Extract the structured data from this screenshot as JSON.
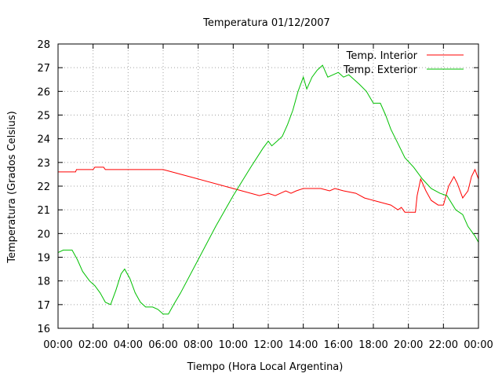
{
  "chart_data": {
    "type": "line",
    "title": "Temperatura 01/12/2007",
    "xlabel": "Tiempo (Hora Local Argentina)",
    "ylabel": "Temperatura (Grados Celsius)",
    "x_unit": "hour",
    "xlim": [
      0,
      24
    ],
    "ylim": [
      16,
      28
    ],
    "x_ticks": [
      0,
      2,
      4,
      6,
      8,
      10,
      12,
      14,
      16,
      18,
      20,
      22,
      24
    ],
    "x_tick_labels": [
      "00:00",
      "02:00",
      "04:00",
      "06:00",
      "08:00",
      "10:00",
      "12:00",
      "14:00",
      "16:00",
      "18:00",
      "20:00",
      "22:00",
      "00:00"
    ],
    "y_ticks": [
      16,
      17,
      18,
      19,
      20,
      21,
      22,
      23,
      24,
      25,
      26,
      27,
      28
    ],
    "y_tick_labels": [
      "16",
      "17",
      "18",
      "19",
      "20",
      "21",
      "22",
      "23",
      "24",
      "25",
      "26",
      "27",
      "28"
    ],
    "grid": true,
    "legend_position": "top-right",
    "series": [
      {
        "name": "Temp. Interior",
        "color": "#ff0000",
        "points": [
          [
            0,
            22.6
          ],
          [
            1.0,
            22.6
          ],
          [
            1.05,
            22.7
          ],
          [
            2.0,
            22.7
          ],
          [
            2.1,
            22.8
          ],
          [
            2.6,
            22.8
          ],
          [
            2.7,
            22.7
          ],
          [
            6.0,
            22.7
          ],
          [
            8.0,
            22.3
          ],
          [
            10.0,
            21.9
          ],
          [
            11.5,
            21.6
          ],
          [
            12.0,
            21.7
          ],
          [
            12.4,
            21.6
          ],
          [
            12.7,
            21.7
          ],
          [
            13.0,
            21.8
          ],
          [
            13.3,
            21.7
          ],
          [
            13.6,
            21.8
          ],
          [
            14.0,
            21.9
          ],
          [
            15.0,
            21.9
          ],
          [
            15.5,
            21.8
          ],
          [
            15.8,
            21.9
          ],
          [
            16.3,
            21.8
          ],
          [
            17.0,
            21.7
          ],
          [
            17.5,
            21.5
          ],
          [
            18.0,
            21.4
          ],
          [
            18.5,
            21.3
          ],
          [
            19.0,
            21.2
          ],
          [
            19.4,
            21.0
          ],
          [
            19.6,
            21.1
          ],
          [
            19.8,
            20.9
          ],
          [
            20.4,
            20.9
          ],
          [
            20.5,
            21.6
          ],
          [
            20.7,
            22.3
          ],
          [
            21.0,
            21.8
          ],
          [
            21.3,
            21.4
          ],
          [
            21.7,
            21.2
          ],
          [
            22.0,
            21.2
          ],
          [
            22.3,
            22.0
          ],
          [
            22.6,
            22.4
          ],
          [
            22.8,
            22.1
          ],
          [
            23.1,
            21.5
          ],
          [
            23.4,
            21.8
          ],
          [
            23.6,
            22.4
          ],
          [
            23.8,
            22.7
          ],
          [
            24.0,
            22.3
          ],
          [
            24.2,
            21.7
          ],
          [
            24.4,
            21.6
          ]
        ]
      },
      {
        "name": "Temp. Exterior",
        "color": "#00c000",
        "points": [
          [
            0,
            19.2
          ],
          [
            0.3,
            19.3
          ],
          [
            0.8,
            19.3
          ],
          [
            1.1,
            18.9
          ],
          [
            1.4,
            18.4
          ],
          [
            1.8,
            18.0
          ],
          [
            2.1,
            17.8
          ],
          [
            2.4,
            17.5
          ],
          [
            2.7,
            17.1
          ],
          [
            3.0,
            17.0
          ],
          [
            3.3,
            17.6
          ],
          [
            3.6,
            18.3
          ],
          [
            3.8,
            18.5
          ],
          [
            4.1,
            18.1
          ],
          [
            4.4,
            17.5
          ],
          [
            4.7,
            17.1
          ],
          [
            5.0,
            16.9
          ],
          [
            5.4,
            16.9
          ],
          [
            5.7,
            16.8
          ],
          [
            6.0,
            16.6
          ],
          [
            6.3,
            16.6
          ],
          [
            6.6,
            17.0
          ],
          [
            7.0,
            17.5
          ],
          [
            8.0,
            18.9
          ],
          [
            9.0,
            20.3
          ],
          [
            10.0,
            21.6
          ],
          [
            11.0,
            22.8
          ],
          [
            11.7,
            23.6
          ],
          [
            12.0,
            23.9
          ],
          [
            12.2,
            23.7
          ],
          [
            12.5,
            23.9
          ],
          [
            12.8,
            24.1
          ],
          [
            13.1,
            24.6
          ],
          [
            13.4,
            25.2
          ],
          [
            13.7,
            26.0
          ],
          [
            14.0,
            26.6
          ],
          [
            14.2,
            26.1
          ],
          [
            14.5,
            26.6
          ],
          [
            14.8,
            26.9
          ],
          [
            15.1,
            27.1
          ],
          [
            15.4,
            26.6
          ],
          [
            15.7,
            26.7
          ],
          [
            16.0,
            26.8
          ],
          [
            16.3,
            26.6
          ],
          [
            16.6,
            26.7
          ],
          [
            16.9,
            26.5
          ],
          [
            17.2,
            26.3
          ],
          [
            17.6,
            26.0
          ],
          [
            18.0,
            25.5
          ],
          [
            18.4,
            25.5
          ],
          [
            18.7,
            25.0
          ],
          [
            19.0,
            24.4
          ],
          [
            19.4,
            23.8
          ],
          [
            19.8,
            23.2
          ],
          [
            20.3,
            22.8
          ],
          [
            20.8,
            22.3
          ],
          [
            21.3,
            21.9
          ],
          [
            21.8,
            21.7
          ],
          [
            22.2,
            21.6
          ],
          [
            22.7,
            21.0
          ],
          [
            23.1,
            20.8
          ],
          [
            23.4,
            20.3
          ],
          [
            23.8,
            19.9
          ],
          [
            24.1,
            19.5
          ],
          [
            24.4,
            19.4
          ]
        ]
      }
    ]
  }
}
